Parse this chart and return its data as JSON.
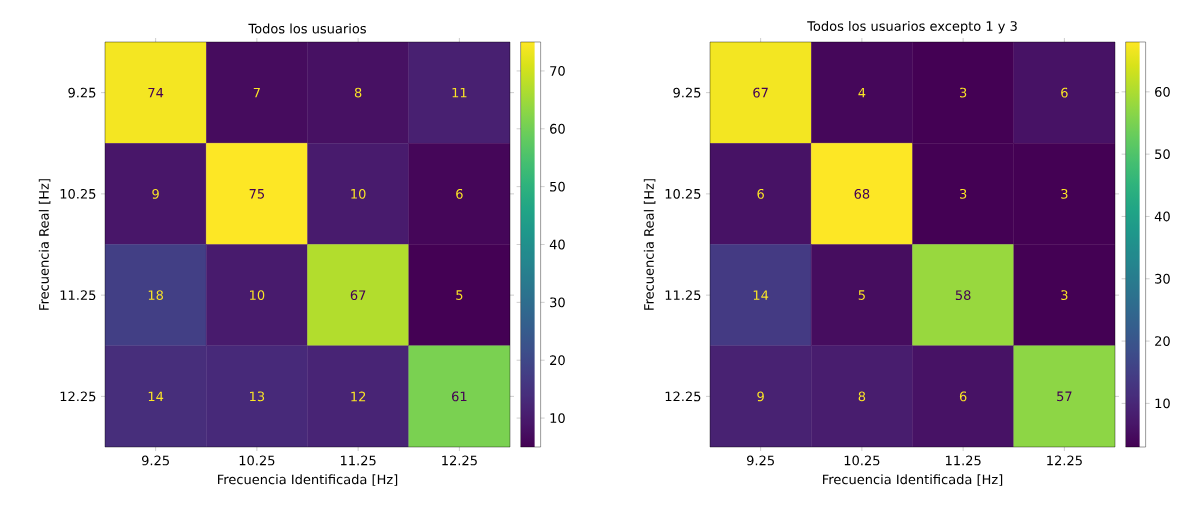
{
  "chart_data": [
    {
      "type": "heatmap",
      "title": "Todos los usuarios",
      "xlabel": "Frecuencia Identificada [Hz]",
      "ylabel": "Frecuencia Real [Hz]",
      "categories": [
        "9.25",
        "10.25",
        "11.25",
        "12.25"
      ],
      "y_categories": [
        "9.25",
        "10.25",
        "11.25",
        "12.25"
      ],
      "cells": [
        [
          74,
          7,
          8,
          11
        ],
        [
          9,
          75,
          10,
          6
        ],
        [
          18,
          10,
          67,
          5
        ],
        [
          14,
          13,
          12,
          61
        ]
      ],
      "clim": [
        5,
        75
      ],
      "cticks": [
        10,
        20,
        30,
        40,
        50,
        60,
        70
      ],
      "data_labels": true
    },
    {
      "type": "heatmap",
      "title": "Todos los usuarios excepto 1 y 3",
      "xlabel": "Frecuencia Identificada [Hz]",
      "ylabel": "Frecuencia Real [Hz]",
      "categories": [
        "9.25",
        "10.25",
        "11.25",
        "12.25"
      ],
      "y_categories": [
        "9.25",
        "10.25",
        "11.25",
        "12.25"
      ],
      "cells": [
        [
          67,
          4,
          3,
          6
        ],
        [
          6,
          68,
          3,
          3
        ],
        [
          14,
          5,
          58,
          3
        ],
        [
          9,
          8,
          6,
          57
        ]
      ],
      "clim": [
        3,
        68
      ],
      "cticks": [
        10,
        20,
        30,
        40,
        50,
        60
      ],
      "data_labels": true
    }
  ]
}
